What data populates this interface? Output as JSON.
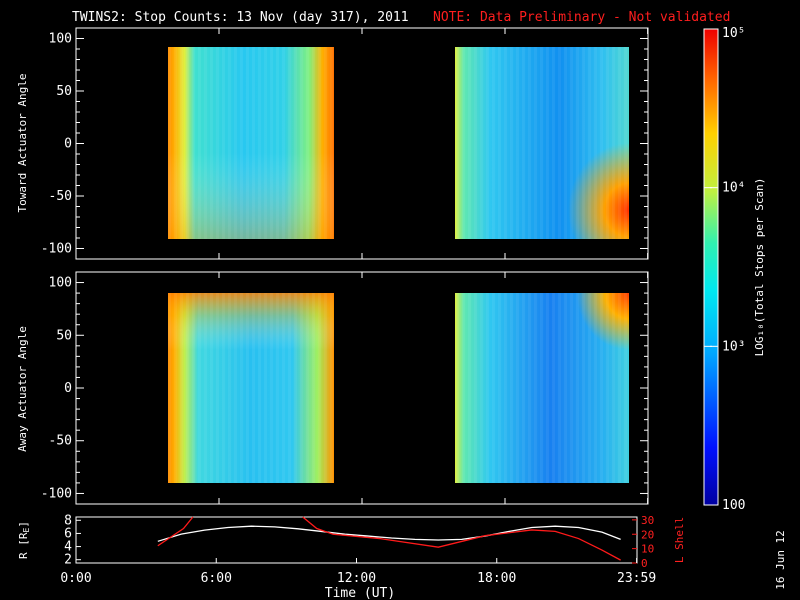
{
  "title": "TWINS2: Stop Counts: 13 Nov (day 317), 2011",
  "note": "NOTE: Data Preliminary - Not validated",
  "date_stamp": "16 Jun 12",
  "colors": {
    "background": "#000000",
    "axes": "#ffffff",
    "note": "#ff1e1e",
    "lshell": "#ff1a1a",
    "radius": "#ffffff"
  },
  "colorbar": {
    "label": "LOG₁₀(Total Stops per Scan)",
    "scale": "log",
    "range": [
      100,
      100000
    ],
    "tick_labels": [
      "100",
      "10³",
      "10⁴",
      "10⁵"
    ]
  },
  "chart_data": [
    {
      "type": "heatmap",
      "name": "toward-panel",
      "title": "",
      "xlabel": "",
      "ylabel": "Toward Actuator Angle",
      "xlim": [
        0,
        24
      ],
      "ylim": [
        -110,
        110
      ],
      "y_tick_labels": [
        "100",
        "50",
        "0",
        "-50",
        "-100"
      ],
      "y_ticks": [
        100,
        50,
        0,
        -50,
        -100
      ],
      "data_blocks": [
        {
          "x_range": [
            3.5,
            10.6
          ],
          "y_range": [
            -90,
            90
          ]
        },
        {
          "x_range": [
            15.8,
            23.3
          ],
          "y_range": [
            -90,
            90
          ]
        }
      ]
    },
    {
      "type": "heatmap",
      "name": "away-panel",
      "title": "",
      "xlabel": "",
      "ylabel": "Away Actuator Angle",
      "xlim": [
        0,
        24
      ],
      "ylim": [
        -110,
        110
      ],
      "y_tick_labels": [
        "100",
        "50",
        "0",
        "-50",
        "-100"
      ],
      "y_ticks": [
        100,
        50,
        0,
        -50,
        -100
      ],
      "data_blocks": [
        {
          "x_range": [
            3.5,
            10.6
          ],
          "y_range": [
            -90,
            90
          ]
        },
        {
          "x_range": [
            15.8,
            23.3
          ],
          "y_range": [
            -90,
            90
          ]
        }
      ]
    },
    {
      "type": "line",
      "name": "orbit-panel",
      "xlabel": "Time (UT)",
      "ylabel_left": "R [R",
      "ylabel_left_sub": "E",
      "ylabel_left_end": "]",
      "ylabel_right": "L Shell",
      "xlim": [
        0,
        24
      ],
      "ylim_left": [
        1.5,
        8.5
      ],
      "ylim_right": [
        0,
        32
      ],
      "x_ticks": [
        0,
        6,
        12,
        18,
        23.983
      ],
      "x_tick_labels": [
        "0:00",
        "6:00",
        "12:00",
        "18:00",
        "23:59"
      ],
      "left_tick_labels": [
        "8",
        "6",
        "4",
        "2"
      ],
      "left_ticks": [
        8,
        6,
        4,
        2
      ],
      "right_tick_labels": [
        "30",
        "20",
        "10",
        "0"
      ],
      "right_ticks": [
        30,
        20,
        10,
        0
      ],
      "series": [
        {
          "axis": "left",
          "color": "#ffffff",
          "x": [
            3.5,
            4.5,
            5.5,
            6.5,
            7.5,
            8.5,
            9.5,
            10.5,
            11.5,
            12.5,
            13.5,
            14.5,
            15.5,
            16.5,
            17.5,
            18.5,
            19.5,
            20.5,
            21.5,
            22.5,
            23.3
          ],
          "y": [
            4.8,
            5.9,
            6.5,
            6.9,
            7.1,
            7.0,
            6.7,
            6.3,
            5.9,
            5.6,
            5.3,
            5.1,
            5.0,
            5.1,
            5.6,
            6.3,
            6.9,
            7.1,
            6.9,
            6.2,
            5.1
          ]
        },
        {
          "axis": "right",
          "color": "#ff1a1a",
          "x": [
            3.5,
            4.6,
            5.0,
            null,
            9.7,
            10.3,
            11.0,
            13.0,
            15.5,
            17.5,
            19.5,
            20.5,
            21.5,
            22.5,
            23.3
          ],
          "y": [
            12,
            24,
            32,
            null,
            32,
            24,
            20,
            17,
            11,
            19,
            23,
            22,
            17,
            9,
            2
          ]
        }
      ]
    }
  ]
}
